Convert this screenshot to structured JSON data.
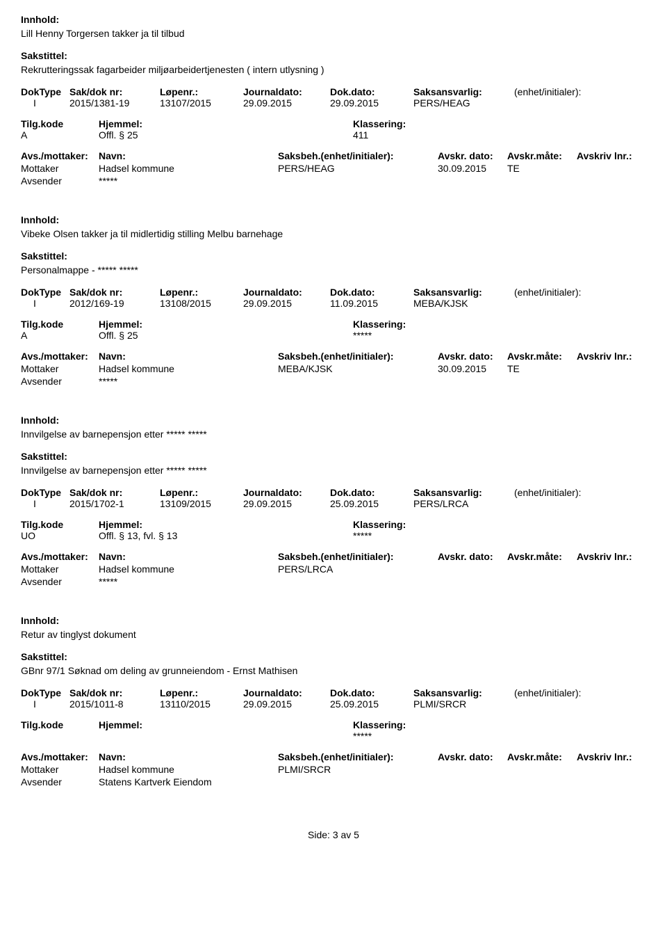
{
  "labels": {
    "innhold": "Innhold:",
    "sakstittel": "Sakstittel:",
    "doktype": "DokType",
    "sakdoknr": "Sak/dok nr:",
    "lopenr": "Løpenr.:",
    "journaldato": "Journaldato:",
    "dokdato": "Dok.dato:",
    "saksansvarlig": "Saksansvarlig:",
    "enhet": "(enhet/initialer):",
    "tilgkode": "Tilg.kode",
    "hjemmel": "Hjemmel:",
    "klassering": "Klassering:",
    "avsmottaker": "Avs./mottaker:",
    "navn": "Navn:",
    "saksbeh": "Saksbeh.(enhet/initialer):",
    "avskrdato": "Avskr. dato:",
    "avskrmaate": "Avskr.måte:",
    "avskrivlnr": "Avskriv lnr.:",
    "mottaker": "Mottaker",
    "avsender": "Avsender"
  },
  "records": [
    {
      "innhold": "Lill Henny Torgersen takker ja til tilbud",
      "sakstittel": "Rekrutteringssak fagarbeider miljøarbeidertjenesten  ( intern utlysning )",
      "doktype": "I",
      "sakdoknr": "2015/1381-19",
      "lopenr": "13107/2015",
      "journaldato": "29.09.2015",
      "dokdato": "29.09.2015",
      "saksansvarlig": "PERS/HEAG",
      "tilgkode": "A",
      "hjemmel": "Offl. § 25",
      "klassering": "411",
      "mottaker_navn": "Hadsel kommune",
      "mottaker_saksbeh": "PERS/HEAG",
      "mottaker_avskrdato": "30.09.2015",
      "mottaker_avskrmaate": "TE",
      "avsender_navn": "*****"
    },
    {
      "innhold": "Vibeke Olsen takker ja til midlertidig stilling Melbu barnehage",
      "sakstittel": "Personalmappe - ***** *****",
      "doktype": "I",
      "sakdoknr": "2012/169-19",
      "lopenr": "13108/2015",
      "journaldato": "29.09.2015",
      "dokdato": "11.09.2015",
      "saksansvarlig": "MEBA/KJSK",
      "tilgkode": "A",
      "hjemmel": "Offl. § 25",
      "klassering": "*****",
      "mottaker_navn": "Hadsel kommune",
      "mottaker_saksbeh": "MEBA/KJSK",
      "mottaker_avskrdato": "30.09.2015",
      "mottaker_avskrmaate": "TE",
      "avsender_navn": "*****"
    },
    {
      "innhold": "Innvilgelse av barnepensjon etter ***** *****",
      "sakstittel": "Innvilgelse av barnepensjon etter ***** *****",
      "doktype": "I",
      "sakdoknr": "2015/1702-1",
      "lopenr": "13109/2015",
      "journaldato": "29.09.2015",
      "dokdato": "25.09.2015",
      "saksansvarlig": "PERS/LRCA",
      "tilgkode": "UO",
      "hjemmel": "Offl. § 13, fvl. § 13",
      "klassering": "*****",
      "mottaker_navn": "Hadsel kommune",
      "mottaker_saksbeh": "PERS/LRCA",
      "mottaker_avskrdato": "",
      "mottaker_avskrmaate": "",
      "avsender_navn": "*****"
    },
    {
      "innhold": "Retur av tinglyst dokument",
      "sakstittel": "GBnr 97/1 Søknad om deling av grunneiendom - Ernst Mathisen",
      "doktype": "I",
      "sakdoknr": "2015/1011-8",
      "lopenr": "13110/2015",
      "journaldato": "29.09.2015",
      "dokdato": "25.09.2015",
      "saksansvarlig": "PLMI/SRCR",
      "tilgkode": "",
      "hjemmel": "",
      "klassering": "*****",
      "mottaker_navn": "Hadsel kommune",
      "mottaker_saksbeh": "PLMI/SRCR",
      "mottaker_avskrdato": "",
      "mottaker_avskrmaate": "",
      "avsender_navn": "Statens Kartverk Eiendom"
    }
  ],
  "footer": "Side: 3 av 5"
}
